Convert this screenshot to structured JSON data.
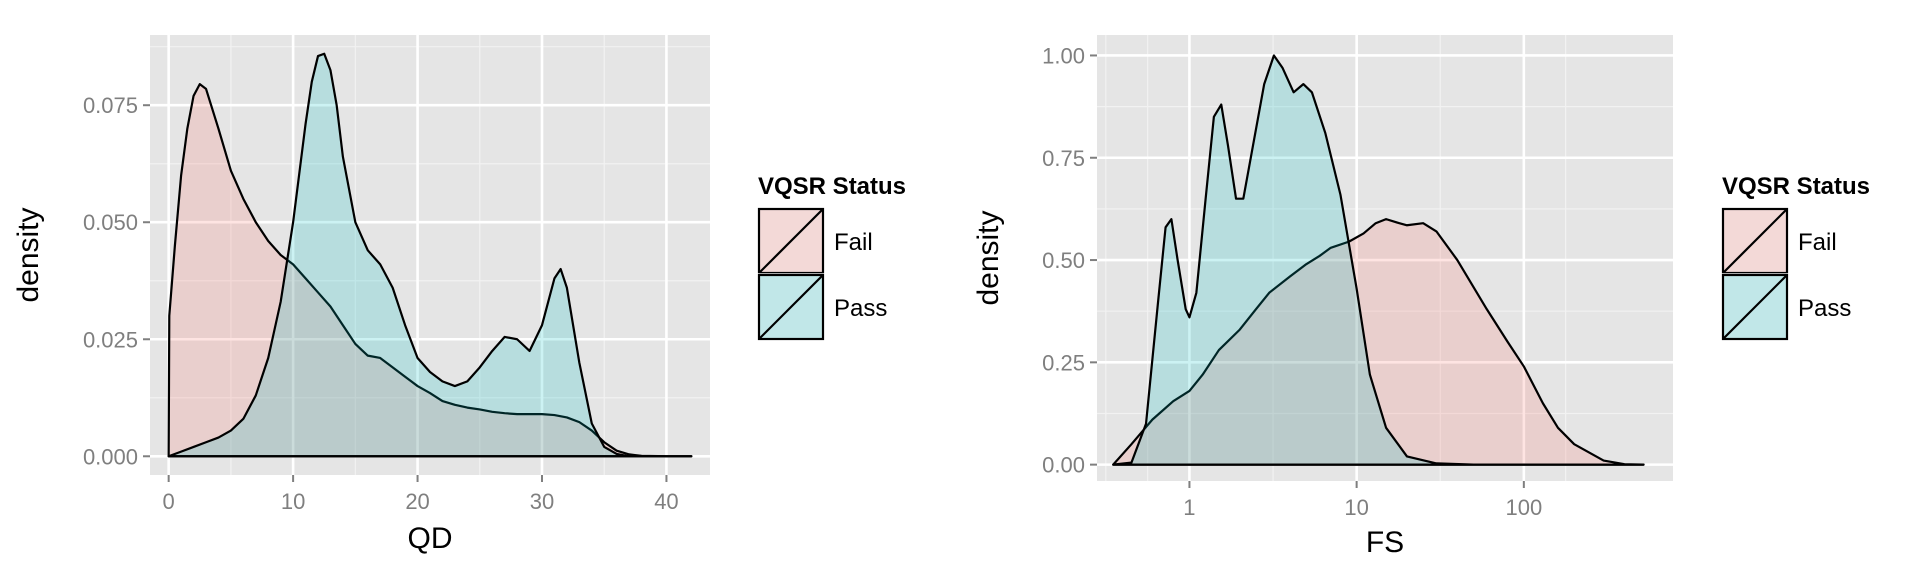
{
  "chart_data": [
    {
      "type": "area",
      "xlabel": "QD",
      "ylabel": "density",
      "xlim": [
        -1.5,
        43.5
      ],
      "ylim": [
        -0.004,
        0.09
      ],
      "x_scale": "linear",
      "x_ticks": [
        {
          "value": 0,
          "label": "0"
        },
        {
          "value": 10,
          "label": "10"
        },
        {
          "value": 20,
          "label": "20"
        },
        {
          "value": 30,
          "label": "30"
        },
        {
          "value": 40,
          "label": "40"
        }
      ],
      "y_ticks": [
        {
          "value": 0,
          "label": "0.000"
        },
        {
          "value": 0.025,
          "label": "0.025"
        },
        {
          "value": 0.05,
          "label": "0.050"
        },
        {
          "value": 0.075,
          "label": "0.075"
        }
      ],
      "grid": true,
      "legend": {
        "title": "VQSR Status",
        "position": "right",
        "entries": [
          "Fail",
          "Pass"
        ]
      },
      "series": [
        {
          "name": "Fail",
          "color": "#F8766D",
          "points": [
            [
              0,
              0
            ],
            [
              0.05,
              0.03
            ],
            [
              0.5,
              0.045
            ],
            [
              1,
              0.06
            ],
            [
              1.5,
              0.07
            ],
            [
              2,
              0.077
            ],
            [
              2.5,
              0.0795
            ],
            [
              3,
              0.0785
            ],
            [
              4,
              0.07
            ],
            [
              5,
              0.061
            ],
            [
              6,
              0.055
            ],
            [
              7,
              0.05
            ],
            [
              8,
              0.046
            ],
            [
              9,
              0.043
            ],
            [
              10,
              0.041
            ],
            [
              11,
              0.038
            ],
            [
              12,
              0.035
            ],
            [
              13,
              0.032
            ],
            [
              14,
              0.028
            ],
            [
              15,
              0.024
            ],
            [
              16,
              0.0215
            ],
            [
              17,
              0.021
            ],
            [
              18,
              0.019
            ],
            [
              19,
              0.017
            ],
            [
              20,
              0.015
            ],
            [
              21,
              0.0135
            ],
            [
              22,
              0.0118
            ],
            [
              23,
              0.011
            ],
            [
              24,
              0.0104
            ],
            [
              25,
              0.01
            ],
            [
              26,
              0.0095
            ],
            [
              27,
              0.0092
            ],
            [
              28,
              0.009
            ],
            [
              29,
              0.009
            ],
            [
              30,
              0.009
            ],
            [
              31,
              0.0088
            ],
            [
              32,
              0.0083
            ],
            [
              33,
              0.0073
            ],
            [
              34,
              0.0055
            ],
            [
              35,
              0.003
            ],
            [
              36,
              0.0012
            ],
            [
              37,
              0.0004
            ],
            [
              38,
              0.0001
            ],
            [
              40,
              0
            ],
            [
              42,
              0
            ]
          ]
        },
        {
          "name": "Pass",
          "color": "#00BFC4",
          "points": [
            [
              0,
              0
            ],
            [
              1,
              0.001
            ],
            [
              2,
              0.002
            ],
            [
              3,
              0.003
            ],
            [
              4,
              0.004
            ],
            [
              5,
              0.0055
            ],
            [
              6,
              0.008
            ],
            [
              7,
              0.013
            ],
            [
              8,
              0.021
            ],
            [
              9,
              0.033
            ],
            [
              10,
              0.05
            ],
            [
              11,
              0.071
            ],
            [
              11.5,
              0.08
            ],
            [
              12,
              0.0855
            ],
            [
              12.5,
              0.086
            ],
            [
              13,
              0.0825
            ],
            [
              13.5,
              0.075
            ],
            [
              14,
              0.064
            ],
            [
              15,
              0.05
            ],
            [
              16,
              0.044
            ],
            [
              17,
              0.041
            ],
            [
              18,
              0.036
            ],
            [
              19,
              0.028
            ],
            [
              20,
              0.021
            ],
            [
              21,
              0.018
            ],
            [
              22,
              0.016
            ],
            [
              23,
              0.015
            ],
            [
              24,
              0.016
            ],
            [
              25,
              0.019
            ],
            [
              26,
              0.0225
            ],
            [
              27,
              0.0255
            ],
            [
              28,
              0.025
            ],
            [
              29,
              0.0225
            ],
            [
              30,
              0.028
            ],
            [
              31,
              0.038
            ],
            [
              31.5,
              0.04
            ],
            [
              32,
              0.036
            ],
            [
              33,
              0.02
            ],
            [
              34,
              0.007
            ],
            [
              35,
              0.002
            ],
            [
              36,
              0.0005
            ],
            [
              37,
              0
            ],
            [
              40,
              0
            ],
            [
              42,
              0
            ]
          ]
        }
      ]
    },
    {
      "type": "area",
      "xlabel": "FS",
      "ylabel": "density",
      "xlim": [
        0.28,
        780
      ],
      "ylim": [
        -0.04,
        1.05
      ],
      "x_scale": "log",
      "x_ticks": [
        {
          "value": 1,
          "label": "1"
        },
        {
          "value": 10,
          "label": "10"
        },
        {
          "value": 100,
          "label": "100"
        }
      ],
      "y_ticks": [
        {
          "value": 0,
          "label": "0.00"
        },
        {
          "value": 0.25,
          "label": "0.25"
        },
        {
          "value": 0.5,
          "label": "0.50"
        },
        {
          "value": 0.75,
          "label": "0.75"
        },
        {
          "value": 1,
          "label": "1.00"
        }
      ],
      "grid": true,
      "legend": {
        "title": "VQSR Status",
        "position": "right",
        "entries": [
          "Fail",
          "Pass"
        ]
      },
      "series": [
        {
          "name": "Fail",
          "color": "#F8766D",
          "points": [
            [
              0.35,
              0.0
            ],
            [
              0.45,
              0.05
            ],
            [
              0.6,
              0.11
            ],
            [
              0.8,
              0.155
            ],
            [
              1.0,
              0.18
            ],
            [
              1.2,
              0.22
            ],
            [
              1.5,
              0.28
            ],
            [
              2,
              0.33
            ],
            [
              2.5,
              0.38
            ],
            [
              3,
              0.42
            ],
            [
              4,
              0.46
            ],
            [
              5,
              0.49
            ],
            [
              6,
              0.51
            ],
            [
              7,
              0.53
            ],
            [
              9,
              0.545
            ],
            [
              11,
              0.565
            ],
            [
              13,
              0.59
            ],
            [
              15,
              0.6
            ],
            [
              18,
              0.59
            ],
            [
              20,
              0.585
            ],
            [
              25,
              0.59
            ],
            [
              30,
              0.57
            ],
            [
              40,
              0.5
            ],
            [
              60,
              0.38
            ],
            [
              80,
              0.3
            ],
            [
              100,
              0.24
            ],
            [
              130,
              0.15
            ],
            [
              160,
              0.09
            ],
            [
              200,
              0.05
            ],
            [
              300,
              0.01
            ],
            [
              400,
              0.001
            ],
            [
              520,
              0.0
            ]
          ]
        },
        {
          "name": "Pass",
          "color": "#00BFC4",
          "points": [
            [
              0.35,
              0
            ],
            [
              0.45,
              0.005
            ],
            [
              0.55,
              0.1
            ],
            [
              0.65,
              0.4
            ],
            [
              0.72,
              0.58
            ],
            [
              0.78,
              0.6
            ],
            [
              0.85,
              0.5
            ],
            [
              0.95,
              0.38
            ],
            [
              1.0,
              0.36
            ],
            [
              1.1,
              0.42
            ],
            [
              1.25,
              0.65
            ],
            [
              1.4,
              0.85
            ],
            [
              1.55,
              0.88
            ],
            [
              1.7,
              0.78
            ],
            [
              1.9,
              0.65
            ],
            [
              2.1,
              0.65
            ],
            [
              2.4,
              0.78
            ],
            [
              2.8,
              0.93
            ],
            [
              3.2,
              1.0
            ],
            [
              3.6,
              0.97
            ],
            [
              4.2,
              0.91
            ],
            [
              4.8,
              0.93
            ],
            [
              5.4,
              0.91
            ],
            [
              6.5,
              0.81
            ],
            [
              8,
              0.66
            ],
            [
              10,
              0.43
            ],
            [
              12,
              0.22
            ],
            [
              15,
              0.09
            ],
            [
              20,
              0.02
            ],
            [
              30,
              0.003
            ],
            [
              50,
              0.0
            ],
            [
              100,
              0.0
            ],
            [
              520,
              0
            ]
          ]
        }
      ]
    }
  ]
}
